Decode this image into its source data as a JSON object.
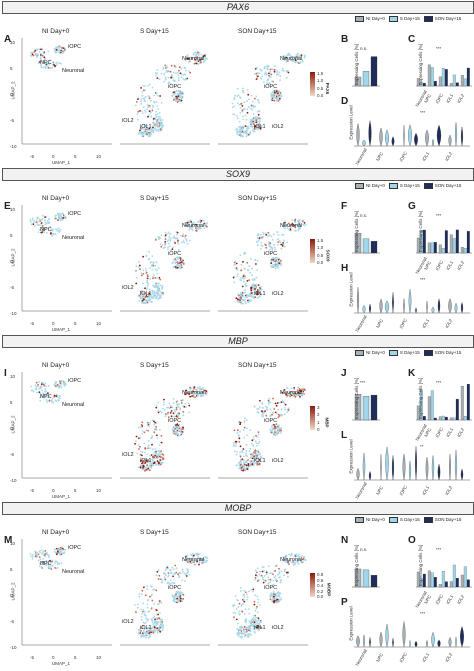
{
  "colors": {
    "ni": "#a9b1b8",
    "s": "#9fd6ea",
    "son": "#1e2d5a",
    "cell": "#a8d8ea",
    "expr_low": "#f2d7c4",
    "expr_high": "#8b1a0a"
  },
  "legend": {
    "ni": "NI Day+0",
    "s": "S Day+15",
    "son": "SON Day+15"
  },
  "umap_titles": [
    "NI Day+0",
    "S Day+15",
    "SON Day+15"
  ],
  "umap_axis": {
    "x": "UMAP_1",
    "y": "UMAP_2",
    "xticks": [
      "-5",
      "0",
      "5",
      "10"
    ],
    "yticks": [
      "10",
      "5",
      "0",
      "-5",
      "-10"
    ]
  },
  "cluster_labels": {
    "ni": [
      "iOPC",
      "NPC",
      "Neuronal"
    ],
    "s": [
      "Neuronal",
      "iOPC",
      "iOL2",
      "iOL1"
    ],
    "son": [
      "Neuronal",
      "iOPC",
      "iOL1",
      "iOL2"
    ]
  },
  "y_expr_cells": "Expressing Cells [%]",
  "y_expr_level": "Expression Level",
  "categories": [
    "Neuronal",
    "NPC",
    "iOPC",
    "iOL1",
    "iOL2"
  ],
  "sections": [
    {
      "gene": "PAX6",
      "letters": [
        "A",
        "B",
        "C",
        "D"
      ],
      "scale": [
        "1.5",
        "1.0",
        "0.5",
        "0.0"
      ],
      "sig": [
        "n.s.",
        "***",
        "***"
      ]
    },
    {
      "gene": "SOX9",
      "letters": [
        "E",
        "F",
        "G",
        "H"
      ],
      "scale": [
        "1.5",
        "1.0",
        "0.5",
        "0.0"
      ],
      "sig": [
        "n.s.",
        "***",
        "***"
      ]
    },
    {
      "gene": "MBP",
      "letters": [
        "I",
        "J",
        "K",
        "L"
      ],
      "scale": [
        "3",
        "2",
        "1",
        "0"
      ],
      "sig": [
        "***",
        "***",
        "**"
      ]
    },
    {
      "gene": "MOBP",
      "letters": [
        "M",
        "N",
        "O",
        "P"
      ],
      "scale": [
        "0.8",
        "0.6",
        "0.4",
        "0.2",
        "0.0"
      ],
      "sig": [
        "n.s.",
        "***",
        "***"
      ]
    }
  ]
}
